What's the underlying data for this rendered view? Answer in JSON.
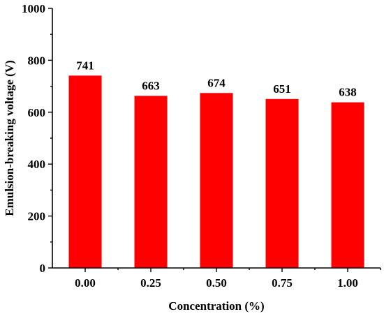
{
  "chart_data": {
    "type": "bar",
    "title": "",
    "xlabel": "Concentration (%)",
    "ylabel": "Emulsion-breaking voltage (V)",
    "categories": [
      "0.00",
      "0.25",
      "0.50",
      "0.75",
      "1.00"
    ],
    "values": [
      741,
      663,
      674,
      651,
      638
    ],
    "data_labels": [
      "741",
      "663",
      "674",
      "651",
      "638"
    ],
    "ylim": [
      0,
      1000
    ],
    "y_major_ticks": [
      0,
      200,
      400,
      600,
      800,
      1000
    ],
    "y_tick_labels": [
      "0",
      "200",
      "400",
      "600",
      "800",
      "1000"
    ],
    "y_minor_step": 100,
    "bar_color": "#ff0000",
    "grid": false,
    "legend": "none"
  }
}
